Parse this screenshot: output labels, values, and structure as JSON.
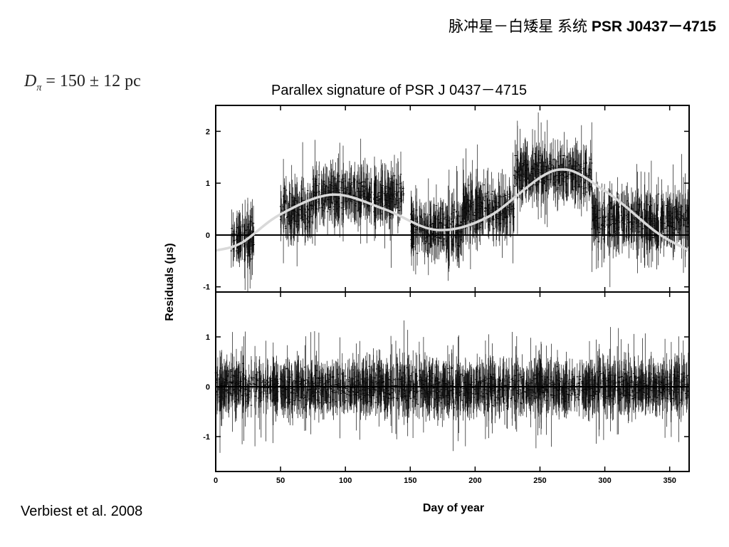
{
  "slide": {
    "title_cn": "脉冲星－白矮星 系统",
    "title_psr": "PSR J0437－4715",
    "formula": {
      "symbol": "D",
      "subscript": "π",
      "rest": "= 150 ± 12 pc"
    },
    "citation": "Verbiest et al. 2008"
  },
  "chart_data": {
    "type": "scatter",
    "title": "Parallex signature of PSR J 0437－4715",
    "xlabel": "Day of year",
    "ylabel": "Residuals (μs)",
    "xlim": [
      0,
      365
    ],
    "x_ticks": [
      0,
      50,
      100,
      150,
      200,
      250,
      300,
      350
    ],
    "panels": [
      {
        "name": "top",
        "ylim": [
          -1.1,
          2.5
        ],
        "y_ticks": [
          -1,
          0,
          1,
          2
        ],
        "model_curve": {
          "color": "#d9d9d9",
          "x": [
            0,
            20,
            50,
            90,
            130,
            170,
            210,
            262,
            300,
            340,
            365
          ],
          "y": [
            -0.3,
            -0.15,
            0.4,
            0.78,
            0.5,
            0.1,
            0.35,
            1.25,
            0.85,
            0.05,
            -0.3
          ]
        },
        "clusters": [
          {
            "x": [
              12,
              30
            ],
            "y_center": -0.1,
            "spread": 0.55
          },
          {
            "x": [
              50,
              75
            ],
            "y_center": 0.45,
            "spread": 0.6
          },
          {
            "x": [
              75,
              110
            ],
            "y_center": 0.78,
            "spread": 0.6
          },
          {
            "x": [
              110,
              145
            ],
            "y_center": 0.75,
            "spread": 0.6
          },
          {
            "x": [
              150,
              190
            ],
            "y_center": 0.1,
            "spread": 0.6
          },
          {
            "x": [
              190,
              230
            ],
            "y_center": 0.5,
            "spread": 0.6
          },
          {
            "x": [
              230,
              290
            ],
            "y_center": 1.2,
            "spread": 0.55
          },
          {
            "x": [
              290,
              365
            ],
            "y_center": 0.3,
            "spread": 0.6
          }
        ]
      },
      {
        "name": "bottom",
        "ylim": [
          -1.7,
          1.9
        ],
        "y_ticks": [
          -1,
          0,
          1
        ],
        "clusters": [
          {
            "x": [
              0,
              365
            ],
            "y_center": 0.0,
            "spread": 0.55
          }
        ]
      }
    ]
  }
}
